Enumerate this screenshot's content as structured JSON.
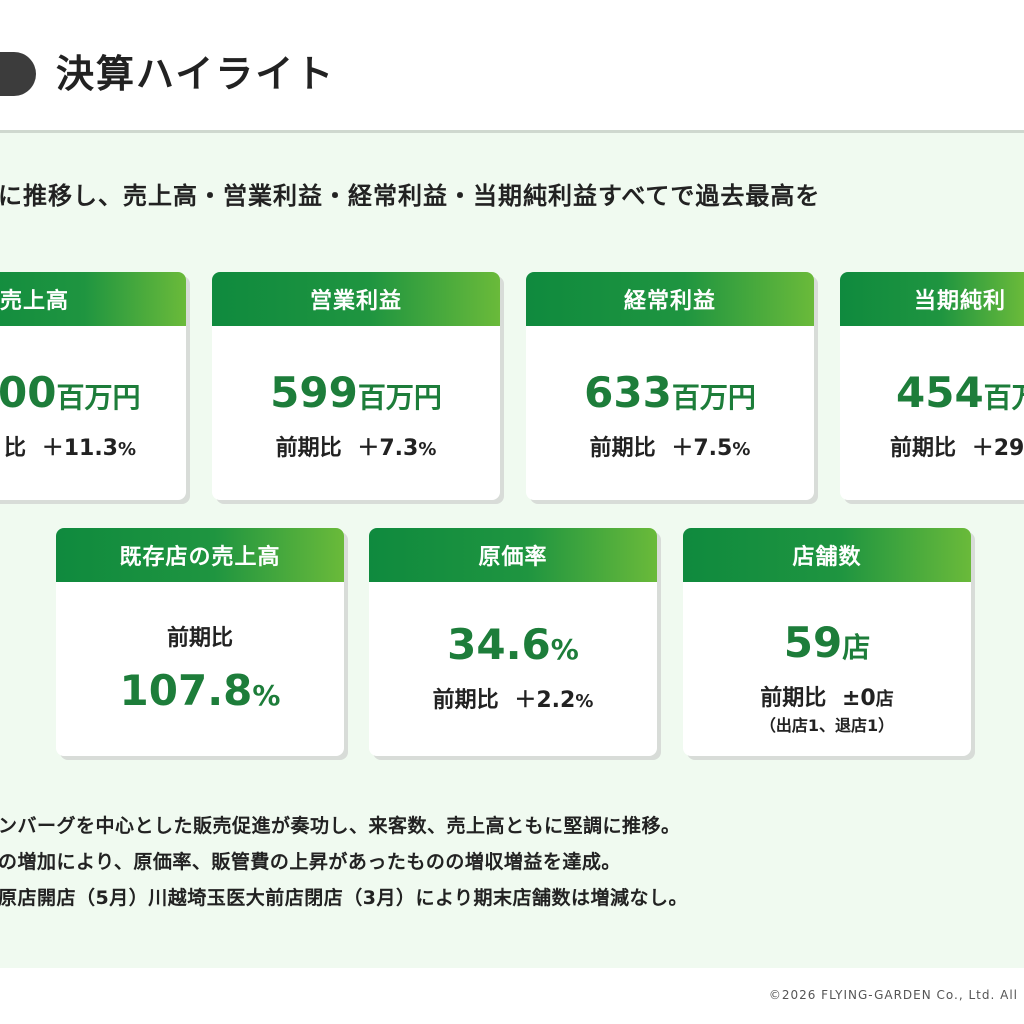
{
  "header": {
    "title": "決算ハイライト"
  },
  "lead": "に推移し、売上高・営業利益・経常利益・当期純利益すべてで過去最高を",
  "cards_top": [
    {
      "title": "売上高",
      "value": "00",
      "unit": "百万円",
      "yoy_label": "比",
      "yoy_sign": "＋",
      "yoy_value": "11.3",
      "yoy_unit": "%"
    },
    {
      "title": "営業利益",
      "value": "599",
      "unit": "百万円",
      "yoy_label": "前期比",
      "yoy_sign": "＋",
      "yoy_value": "7.3",
      "yoy_unit": "%"
    },
    {
      "title": "経常利益",
      "value": "633",
      "unit": "百万円",
      "yoy_label": "前期比",
      "yoy_sign": "＋",
      "yoy_value": "7.5",
      "yoy_unit": "%"
    },
    {
      "title": "当期純利",
      "value": "454",
      "unit": "百万",
      "yoy_label": "前期比",
      "yoy_sign": "＋",
      "yoy_value": "29",
      "yoy_unit": ""
    }
  ],
  "cards_bottom": {
    "existing": {
      "title": "既存店の売上高",
      "label": "前期比",
      "value": "107.8",
      "unit": "%"
    },
    "cost_rate": {
      "title": "原価率",
      "value": "34.6",
      "unit": "%",
      "yoy_label": "前期比",
      "yoy_sign": "＋",
      "yoy_value": "2.2",
      "yoy_unit": "%"
    },
    "stores": {
      "title": "店舗数",
      "value": "59",
      "unit": "店",
      "yoy_label": "前期比",
      "yoy_sign": "±",
      "yoy_value": "0",
      "yoy_unit": "店",
      "note": "（出店1、退店1）"
    }
  },
  "bullets": [
    "ンバーグを中心とした販売促進が奏功し、来客数、売上高ともに堅調に推移。",
    "の増加により、原価率、販管費の上昇があったものの増収増益を達成。",
    "原店開店（5月）川越埼玉医大前店閉店（3月）により期末店舗数は増減なし。"
  ],
  "footer": {
    "copyright": "©2026 FLYING-GARDEN Co., Ltd. All"
  }
}
